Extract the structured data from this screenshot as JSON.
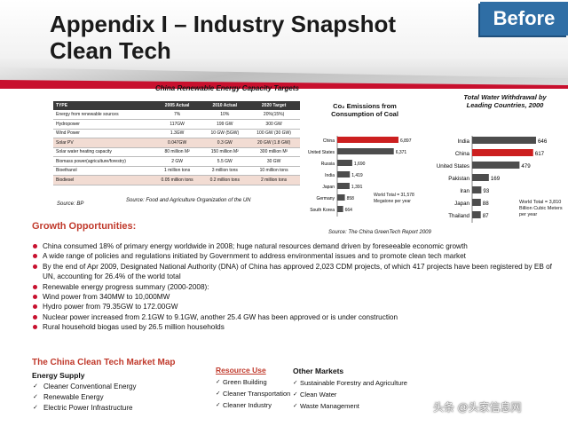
{
  "header": {
    "title_line1": "Appendix I – Industry Snapshot",
    "title_line2": "Clean Tech",
    "badge": "Before",
    "accent_color": "#c8102e",
    "badge_color": "#2f6ea5"
  },
  "capacity_table": {
    "title": "China Renewable Energy Capacity Targets",
    "columns": [
      "TYPE",
      "2005 Actual",
      "2010 Actual",
      "2020 Target"
    ],
    "rows": [
      [
        "Energy from renewable sources",
        "7%",
        "10%",
        "20%(15%)"
      ],
      [
        "Hydropower",
        "117GW",
        "199 GW",
        "300 GW"
      ],
      [
        "Wind Power",
        "1.3GW",
        "10 GW (5GW)",
        "100 GW (30 GW)"
      ],
      [
        "Solar PV",
        "0.047GW",
        "0.3 GW",
        "20 GW (1.8 GW)"
      ],
      [
        "Solar water heating capacity",
        "80 million M²",
        "150 million M²",
        "300 million M²"
      ],
      [
        "Biomass power(agriculture/forestry)",
        "2 GW",
        "5.5 GW",
        "30 GW"
      ],
      [
        "Bioethanol",
        "1 million tons",
        "3 million tons",
        "10 million tons"
      ],
      [
        "Biodiesel",
        "0.05 million tons",
        "0.2 million tons",
        "2 million tons"
      ]
    ],
    "highlight_rows": [
      3,
      7
    ],
    "source_left": "Source: BP",
    "source_right": "Source: Food and Agriculture Organization of the UN"
  },
  "chart_data": [
    {
      "type": "bar",
      "orientation": "horizontal",
      "title": "Co₂ Emissions from Consumption of Coal",
      "categories": [
        "China",
        "United States",
        "Russia",
        "India",
        "Japan",
        "Germany",
        "South Korea"
      ],
      "values": [
        6897,
        6371,
        1690,
        1419,
        1391,
        858,
        664
      ],
      "value_labels": [
        "6,897",
        "6,371",
        "1,690",
        "1,419",
        "1,391",
        "858",
        "664"
      ],
      "highlight": "China",
      "highlight_color": "#cc1f1f",
      "bar_color": "#4d4d4d",
      "note": [
        "World Total = 31,578",
        "Megatone per year"
      ],
      "source": "Source: The China GreenTech Report 2009",
      "xlim": [
        0,
        8000
      ]
    },
    {
      "type": "bar",
      "orientation": "horizontal",
      "title": "Total Water Withdrawal by Leading Countries, 2000",
      "categories": [
        "India",
        "China",
        "United States",
        "Pakistan",
        "Iran",
        "Japan",
        "Thailand"
      ],
      "values": [
        646,
        617,
        479,
        169,
        93,
        88,
        87
      ],
      "value_labels": [
        "646",
        "617",
        "479",
        "169",
        "93",
        "88",
        "87"
      ],
      "highlight": "China",
      "highlight_color": "#cc1f1f",
      "bar_color": "#4d4d4d",
      "note": [
        "World Total = 3,810",
        "Billion Cubic Meters per year"
      ],
      "xlim": [
        0,
        700
      ]
    }
  ],
  "growth": {
    "heading": "Growth Opportunities:",
    "bullets": [
      "China consumed 18% of primary energy worldwide in 2008; huge natural resources demand driven by foreseeable economic growth",
      "A wide range of policies and regulations initiated by Government to address environmental issues and to promote clean tech market",
      "By the end of Apr 2009, Designated National Authority (DNA) of China has approved 2,023 CDM projects, of which 417 projects have been registered by EB of UN, accounting for 26.4% of the world total",
      "Renewable energy progress summary (2000-2008):",
      "Wind power from 340MW to 10,000MW",
      "Hydro power from 79.35GW to 172.00GW",
      "Nuclear power increased from 2.1GW to 9.1GW, another 25.4 GW has been approved or is under construction",
      "Rural household biogas used by 26.5 million households"
    ]
  },
  "market_map": {
    "heading": "The China Clean Tech Market Map",
    "energy_supply": {
      "heading": "Energy Supply",
      "items": [
        "Cleaner Conventional Energy",
        "Renewable Energy",
        "Electric Power Infrastructure"
      ]
    },
    "resource_use": {
      "heading": "Resource Use",
      "items": [
        "Green   Building",
        "Cleaner Transportation",
        "Cleaner Industry"
      ]
    },
    "other_markets": {
      "heading": "Other Markets",
      "items": [
        "Sustainable Forestry and Agriculture",
        "Clean   Water",
        "Waste Management"
      ]
    }
  },
  "watermark": "头条 @头家信息网"
}
